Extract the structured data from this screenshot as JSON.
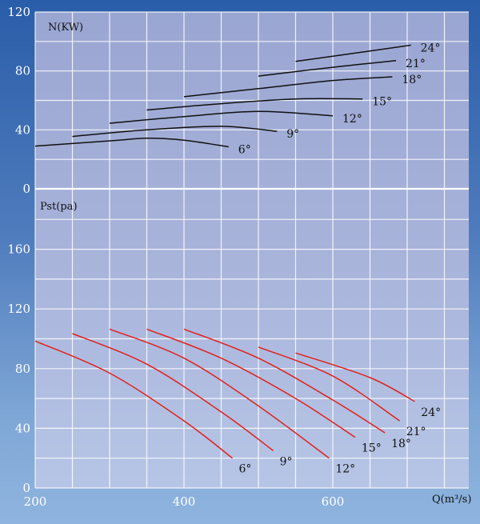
{
  "chart_data": [
    {
      "type": "line",
      "panel": "power",
      "ylabel": "N(KW)",
      "ylim": [
        0,
        120
      ],
      "xlim": [
        200,
        800
      ],
      "y_ticks": [
        "120",
        "80",
        "40",
        "0"
      ],
      "series_color": "#111111",
      "series": [
        {
          "name": "6°",
          "label": "6°",
          "x": [
            200,
            300,
            350,
            400,
            460
          ],
          "y": [
            29,
            32.5,
            34.3,
            33,
            28.5
          ]
        },
        {
          "name": "9°",
          "label": "9°",
          "x": [
            250,
            350,
            450,
            525
          ],
          "y": [
            35.5,
            40,
            42.4,
            39
          ]
        },
        {
          "name": "12°",
          "label": "12°",
          "x": [
            300,
            400,
            500,
            600
          ],
          "y": [
            44.5,
            49,
            52.5,
            49.5
          ]
        },
        {
          "name": "15°",
          "label": "15°",
          "x": [
            350,
            450,
            550,
            640
          ],
          "y": [
            53.5,
            57.8,
            61,
            61
          ]
        },
        {
          "name": "18°",
          "label": "18°",
          "x": [
            400,
            500,
            600,
            680
          ],
          "y": [
            62.5,
            68,
            73.5,
            76
          ]
        },
        {
          "name": "21°",
          "label": "21°",
          "x": [
            500,
            600,
            685
          ],
          "y": [
            76.5,
            82.5,
            87
          ]
        },
        {
          "name": "24°",
          "label": "24°",
          "x": [
            550,
            650,
            705
          ],
          "y": [
            86.5,
            93.5,
            97.5
          ]
        }
      ]
    },
    {
      "type": "line",
      "panel": "pressure",
      "ylabel": "Pst(pa)",
      "xlabel": "Q(m³/s)",
      "ylim": [
        0,
        200
      ],
      "xlim": [
        200,
        800
      ],
      "x_ticks": [
        "200",
        "400",
        "600"
      ],
      "y_ticks": [
        "160",
        "120",
        "80",
        "40",
        "0"
      ],
      "series_color": "#e0221c",
      "series": [
        {
          "name": "6°",
          "label": "6°",
          "x": [
            200,
            300,
            400,
            465
          ],
          "y": [
            98.5,
            77,
            45,
            20
          ]
        },
        {
          "name": "9°",
          "label": "9°",
          "x": [
            250,
            350,
            450,
            520
          ],
          "y": [
            103.5,
            83,
            51,
            25
          ]
        },
        {
          "name": "12°",
          "label": "12°",
          "x": [
            300,
            400,
            500,
            595
          ],
          "y": [
            106.5,
            87,
            55,
            20
          ]
        },
        {
          "name": "15°",
          "label": "15°",
          "x": [
            350,
            450,
            550,
            630
          ],
          "y": [
            106.5,
            87,
            60,
            34
          ]
        },
        {
          "name": "18°",
          "label": "18°",
          "x": [
            400,
            500,
            600,
            670
          ],
          "y": [
            106.5,
            87,
            59,
            37
          ]
        },
        {
          "name": "21°",
          "label": "21°",
          "x": [
            500,
            600,
            690
          ],
          "y": [
            94.5,
            75,
            45
          ]
        },
        {
          "name": "24°",
          "label": "24°",
          "x": [
            550,
            650,
            710
          ],
          "y": [
            90.5,
            74,
            58
          ]
        }
      ]
    }
  ]
}
